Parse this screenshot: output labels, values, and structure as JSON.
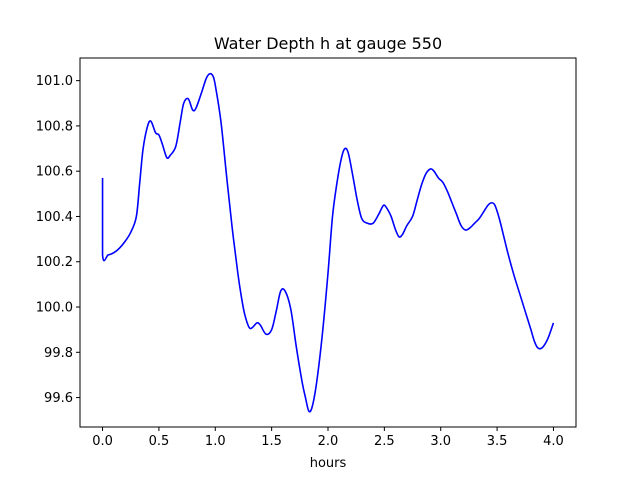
{
  "chart_data": {
    "type": "line",
    "title": "Water Depth h at gauge 550",
    "xlabel": "hours",
    "ylabel": "",
    "xlim": [
      -0.2,
      4.2
    ],
    "ylim": [
      99.47,
      101.1
    ],
    "grid": false,
    "legend": "none",
    "x_ticks": [
      0.0,
      0.5,
      1.0,
      1.5,
      2.0,
      2.5,
      3.0,
      3.5,
      4.0
    ],
    "x_tick_labels": [
      "0.0",
      "0.5",
      "1.0",
      "1.5",
      "2.0",
      "2.5",
      "3.0",
      "3.5",
      "4.0"
    ],
    "y_ticks": [
      99.6,
      99.8,
      100.0,
      100.2,
      100.4,
      100.6,
      100.8,
      101.0
    ],
    "y_tick_labels": [
      "99.6",
      "99.8",
      "100.0",
      "100.2",
      "100.4",
      "100.6",
      "100.8",
      "101.0"
    ],
    "series": [
      {
        "color": "#0000ff",
        "x": [
          0.0,
          0.0,
          0.05,
          0.1,
          0.15,
          0.2,
          0.25,
          0.3,
          0.33,
          0.36,
          0.4,
          0.43,
          0.47,
          0.5,
          0.53,
          0.57,
          0.6,
          0.65,
          0.69,
          0.72,
          0.76,
          0.8,
          0.83,
          0.88,
          0.92,
          0.95,
          0.98,
          1.0,
          1.05,
          1.1,
          1.15,
          1.2,
          1.23,
          1.26,
          1.3,
          1.33,
          1.37,
          1.4,
          1.45,
          1.5,
          1.54,
          1.58,
          1.62,
          1.67,
          1.72,
          1.77,
          1.8,
          1.83,
          1.86,
          1.9,
          1.95,
          2.0,
          2.04,
          2.08,
          2.12,
          2.15,
          2.18,
          2.22,
          2.26,
          2.3,
          2.35,
          2.4,
          2.45,
          2.48,
          2.5,
          2.53,
          2.56,
          2.6,
          2.63,
          2.66,
          2.7,
          2.75,
          2.79,
          2.83,
          2.87,
          2.91,
          2.94,
          2.98,
          3.02,
          3.06,
          3.1,
          3.14,
          3.18,
          3.22,
          3.26,
          3.3,
          3.34,
          3.38,
          3.42,
          3.45,
          3.48,
          3.52,
          3.56,
          3.6,
          3.65,
          3.7,
          3.75,
          3.8,
          3.83,
          3.86,
          3.9,
          3.95,
          4.0
        ],
        "values": [
          100.57,
          100.23,
          100.23,
          100.24,
          100.26,
          100.29,
          100.33,
          100.4,
          100.55,
          100.7,
          100.8,
          100.82,
          100.77,
          100.76,
          100.72,
          100.66,
          100.67,
          100.71,
          100.82,
          100.9,
          100.92,
          100.87,
          100.88,
          100.95,
          101.01,
          101.03,
          101.02,
          100.98,
          100.82,
          100.58,
          100.35,
          100.15,
          100.05,
          99.97,
          99.91,
          99.91,
          99.93,
          99.92,
          99.88,
          99.9,
          99.98,
          100.07,
          100.07,
          99.99,
          99.82,
          99.67,
          99.6,
          99.54,
          99.56,
          99.67,
          99.88,
          100.15,
          100.4,
          100.55,
          100.66,
          100.7,
          100.68,
          100.58,
          100.47,
          100.39,
          100.37,
          100.37,
          100.41,
          100.44,
          100.45,
          100.43,
          100.4,
          100.34,
          100.31,
          100.32,
          100.36,
          100.4,
          100.47,
          100.54,
          100.59,
          100.61,
          100.6,
          100.57,
          100.55,
          100.51,
          100.46,
          100.41,
          100.36,
          100.34,
          100.35,
          100.37,
          100.39,
          100.42,
          100.45,
          100.46,
          100.45,
          100.39,
          100.31,
          100.23,
          100.14,
          100.06,
          99.98,
          99.9,
          99.85,
          99.82,
          99.82,
          99.86,
          99.93
        ]
      }
    ]
  }
}
